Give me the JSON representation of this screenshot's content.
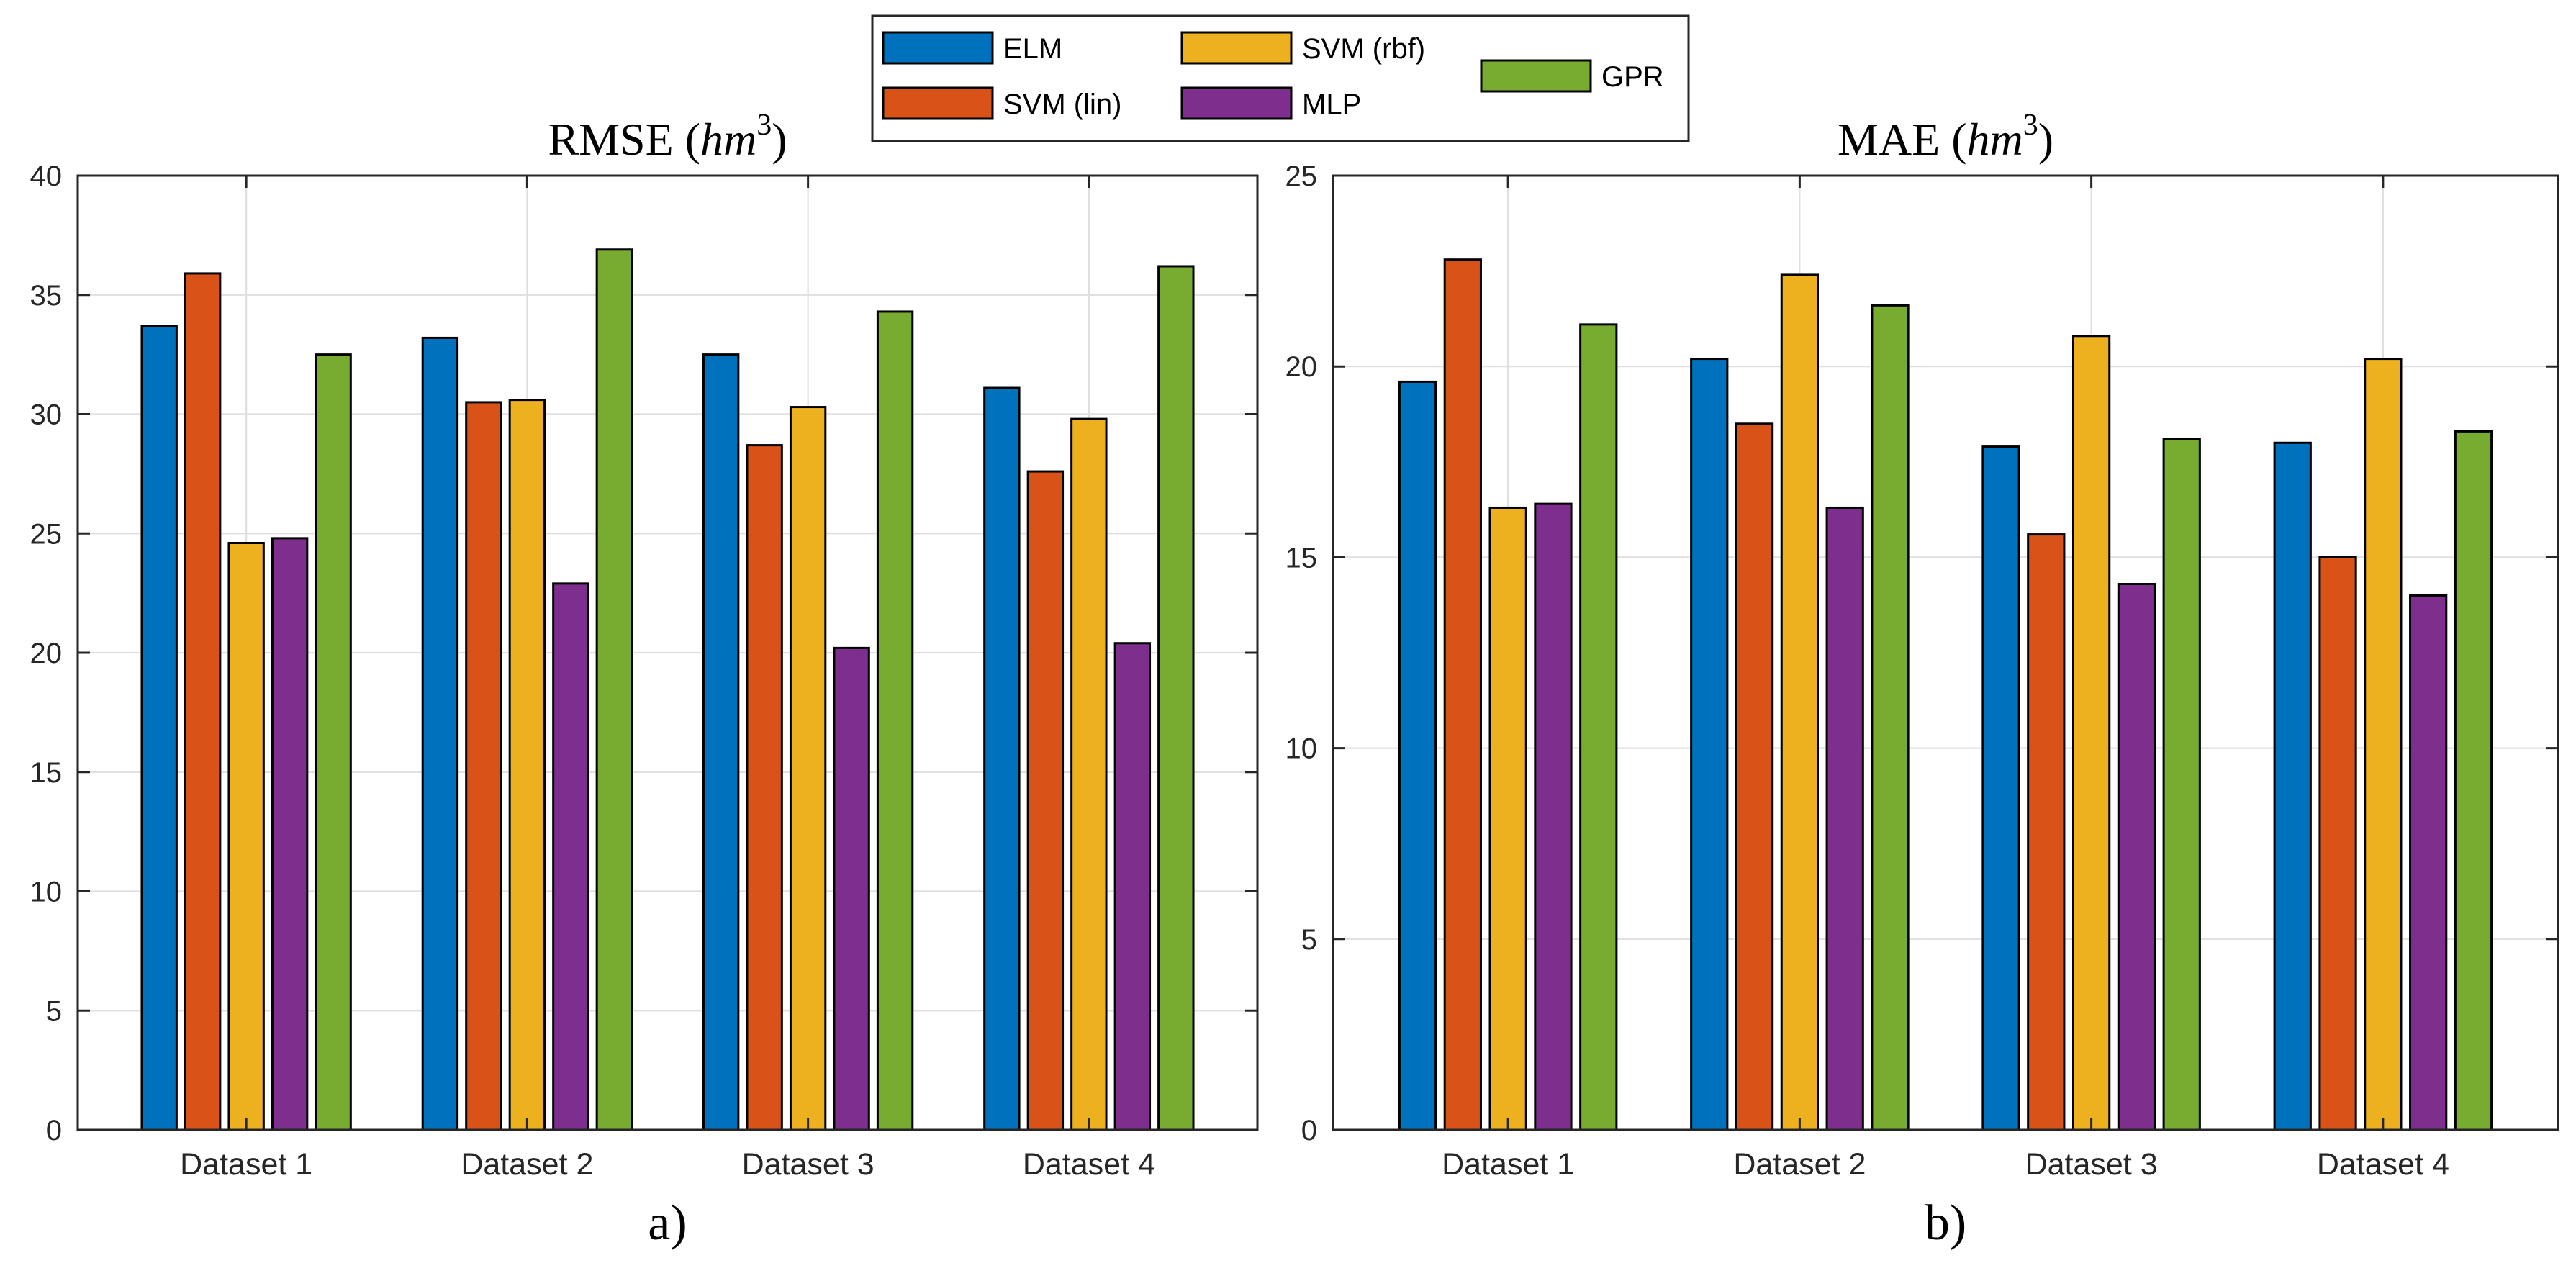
{
  "legend": {
    "items": [
      {
        "label": "ELM",
        "color": "#0072BD"
      },
      {
        "label": "SVM (lin)",
        "color": "#D95319"
      },
      {
        "label": "SVM (rbf)",
        "color": "#EDB120"
      },
      {
        "label": "MLP",
        "color": "#7E2F8E"
      },
      {
        "label": "GPR",
        "color": "#77AC30"
      }
    ]
  },
  "chart_data": [
    {
      "type": "bar",
      "title": "RMSE (hm³)",
      "title_main": "RMSE (",
      "title_unit": "hm",
      "title_exp": "3",
      "title_close": ")",
      "caption": "a)",
      "categories": [
        "Dataset 1",
        "Dataset 2",
        "Dataset 3",
        "Dataset 4"
      ],
      "ylim": [
        0,
        40
      ],
      "yticks": [
        "0",
        "5",
        "10",
        "15",
        "20",
        "25",
        "30",
        "35",
        "40"
      ],
      "ytick_values": [
        0,
        5,
        10,
        15,
        20,
        25,
        30,
        35,
        40
      ],
      "grid": true,
      "series": [
        {
          "name": "ELM",
          "values": [
            33.7,
            33.2,
            32.5,
            31.1
          ]
        },
        {
          "name": "SVM (lin)",
          "values": [
            35.9,
            30.5,
            28.7,
            27.6
          ]
        },
        {
          "name": "SVM (rbf)",
          "values": [
            24.6,
            30.6,
            30.3,
            29.8
          ]
        },
        {
          "name": "MLP",
          "values": [
            24.8,
            22.9,
            20.2,
            20.4
          ]
        },
        {
          "name": "GPR",
          "values": [
            32.5,
            36.9,
            34.3,
            36.2
          ]
        }
      ]
    },
    {
      "type": "bar",
      "title": "MAE (hm³)",
      "title_main": "MAE (",
      "title_unit": "hm",
      "title_exp": "3",
      "title_close": ")",
      "caption": "b)",
      "categories": [
        "Dataset 1",
        "Dataset 2",
        "Dataset 3",
        "Dataset 4"
      ],
      "ylim": [
        0,
        25
      ],
      "yticks": [
        "0",
        "5",
        "10",
        "15",
        "20",
        "25"
      ],
      "ytick_values": [
        0,
        5,
        10,
        15,
        20,
        25
      ],
      "grid": true,
      "series": [
        {
          "name": "ELM",
          "values": [
            19.6,
            20.2,
            17.9,
            18.0
          ]
        },
        {
          "name": "SVM (lin)",
          "values": [
            22.8,
            18.5,
            15.6,
            15.0
          ]
        },
        {
          "name": "SVM (rbf)",
          "values": [
            16.3,
            22.4,
            20.8,
            20.2
          ]
        },
        {
          "name": "MLP",
          "values": [
            16.4,
            16.3,
            14.3,
            14.0
          ]
        },
        {
          "name": "GPR",
          "values": [
            21.1,
            21.6,
            18.1,
            18.3
          ]
        }
      ]
    }
  ]
}
